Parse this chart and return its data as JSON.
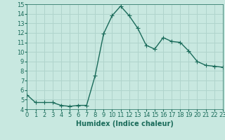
{
  "x": [
    0,
    1,
    2,
    3,
    4,
    5,
    6,
    7,
    8,
    9,
    10,
    11,
    12,
    13,
    14,
    15,
    16,
    17,
    18,
    19,
    20,
    21,
    22,
    23
  ],
  "y": [
    5.5,
    4.7,
    4.7,
    4.7,
    4.4,
    4.3,
    4.4,
    4.4,
    7.5,
    11.9,
    13.8,
    14.8,
    13.8,
    12.5,
    10.7,
    10.3,
    11.5,
    11.1,
    11.0,
    10.1,
    9.0,
    8.6,
    8.5,
    8.4
  ],
  "line_color": "#1a6b5a",
  "marker": "D",
  "marker_size": 2.0,
  "bg_color": "#c8e8e0",
  "grid_color": "#b0d4cc",
  "xlabel": "Humidex (Indice chaleur)",
  "xlim": [
    0,
    23
  ],
  "ylim": [
    4,
    15
  ],
  "yticks": [
    4,
    5,
    6,
    7,
    8,
    9,
    10,
    11,
    12,
    13,
    14,
    15
  ],
  "xticks": [
    0,
    1,
    2,
    3,
    4,
    5,
    6,
    7,
    8,
    9,
    10,
    11,
    12,
    13,
    14,
    15,
    16,
    17,
    18,
    19,
    20,
    21,
    22,
    23
  ],
  "xlabel_fontsize": 7,
  "tick_fontsize": 6,
  "line_width": 1.0
}
